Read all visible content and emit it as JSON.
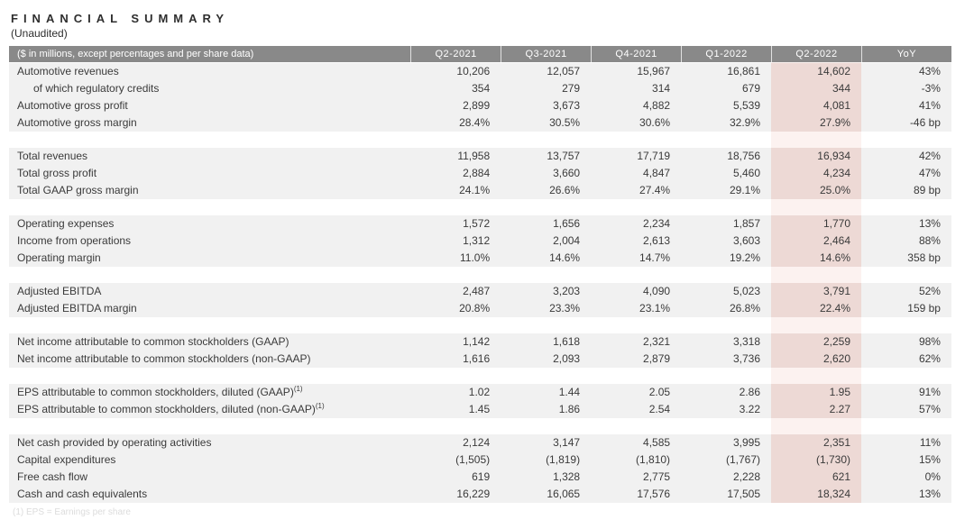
{
  "page": {
    "title": "FINANCIAL SUMMARY",
    "subtitle": "(Unaudited)",
    "footnote": "(1) EPS = Earnings per share"
  },
  "table": {
    "colors": {
      "header_bg": "#898989",
      "header_text": "#ffffff",
      "row_bg": "#f1f1f1",
      "text": "#3a3a3a",
      "highlight_cell": "rgba(224,124,107,0.20)",
      "highlight_band": "rgba(224,124,107,0.10)",
      "footnote": "#dcdcdc"
    },
    "header": {
      "label": "($ in millions, except percentages and per share data)",
      "columns": [
        "Q2-2021",
        "Q3-2021",
        "Q4-2021",
        "Q1-2022",
        "Q2-2022",
        "YoY"
      ],
      "highlight_index": 4,
      "highlight_column": "Q2-2022"
    },
    "sections": [
      {
        "rows": [
          {
            "label": "Automotive revenues",
            "indent": false,
            "values": [
              "10,206",
              "12,057",
              "15,967",
              "16,861",
              "14,602",
              "43%"
            ]
          },
          {
            "label": "of which regulatory credits",
            "indent": true,
            "values": [
              "354",
              "279",
              "314",
              "679",
              "344",
              "-3%"
            ]
          },
          {
            "label": "Automotive gross profit",
            "indent": false,
            "values": [
              "2,899",
              "3,673",
              "4,882",
              "5,539",
              "4,081",
              "41%"
            ]
          },
          {
            "label": "Automotive gross margin",
            "indent": false,
            "values": [
              "28.4%",
              "30.5%",
              "30.6%",
              "32.9%",
              "27.9%",
              "-46 bp"
            ]
          }
        ]
      },
      {
        "rows": [
          {
            "label": "Total revenues",
            "indent": false,
            "values": [
              "11,958",
              "13,757",
              "17,719",
              "18,756",
              "16,934",
              "42%"
            ]
          },
          {
            "label": "Total gross profit",
            "indent": false,
            "values": [
              "2,884",
              "3,660",
              "4,847",
              "5,460",
              "4,234",
              "47%"
            ]
          },
          {
            "label": "Total GAAP gross margin",
            "indent": false,
            "values": [
              "24.1%",
              "26.6%",
              "27.4%",
              "29.1%",
              "25.0%",
              "89 bp"
            ]
          }
        ]
      },
      {
        "rows": [
          {
            "label": "Operating expenses",
            "indent": false,
            "values": [
              "1,572",
              "1,656",
              "2,234",
              "1,857",
              "1,770",
              "13%"
            ]
          },
          {
            "label": "Income from operations",
            "indent": false,
            "values": [
              "1,312",
              "2,004",
              "2,613",
              "3,603",
              "2,464",
              "88%"
            ]
          },
          {
            "label": "Operating margin",
            "indent": false,
            "values": [
              "11.0%",
              "14.6%",
              "14.7%",
              "19.2%",
              "14.6%",
              "358 bp"
            ]
          }
        ]
      },
      {
        "rows": [
          {
            "label": "Adjusted EBITDA",
            "indent": false,
            "values": [
              "2,487",
              "3,203",
              "4,090",
              "5,023",
              "3,791",
              "52%"
            ]
          },
          {
            "label": "Adjusted EBITDA margin",
            "indent": false,
            "values": [
              "20.8%",
              "23.3%",
              "23.1%",
              "26.8%",
              "22.4%",
              "159 bp"
            ]
          }
        ]
      },
      {
        "rows": [
          {
            "label": "Net income attributable to common stockholders (GAAP)",
            "indent": false,
            "values": [
              "1,142",
              "1,618",
              "2,321",
              "3,318",
              "2,259",
              "98%"
            ]
          },
          {
            "label": "Net income attributable to common stockholders (non-GAAP)",
            "indent": false,
            "values": [
              "1,616",
              "2,093",
              "2,879",
              "3,736",
              "2,620",
              "62%"
            ]
          }
        ]
      },
      {
        "rows": [
          {
            "label": "EPS attributable to common stockholders, diluted (GAAP)",
            "sup": "(1)",
            "indent": false,
            "values": [
              "1.02",
              "1.44",
              "2.05",
              "2.86",
              "1.95",
              "91%"
            ]
          },
          {
            "label": "EPS attributable to common stockholders, diluted (non-GAAP)",
            "sup": "(1)",
            "indent": false,
            "values": [
              "1.45",
              "1.86",
              "2.54",
              "3.22",
              "2.27",
              "57%"
            ]
          }
        ]
      },
      {
        "rows": [
          {
            "label": "Net cash provided by operating activities",
            "indent": false,
            "values": [
              "2,124",
              "3,147",
              "4,585",
              "3,995",
              "2,351",
              "11%"
            ]
          },
          {
            "label": "Capital expenditures",
            "indent": false,
            "values": [
              "(1,505)",
              "(1,819)",
              "(1,810)",
              "(1,767)",
              "(1,730)",
              "15%"
            ]
          },
          {
            "label": "Free cash flow",
            "indent": false,
            "values": [
              "619",
              "1,328",
              "2,775",
              "2,228",
              "621",
              "0%"
            ]
          },
          {
            "label": "Cash and cash equivalents",
            "indent": false,
            "values": [
              "16,229",
              "16,065",
              "17,576",
              "17,505",
              "18,324",
              "13%"
            ]
          }
        ]
      }
    ]
  }
}
